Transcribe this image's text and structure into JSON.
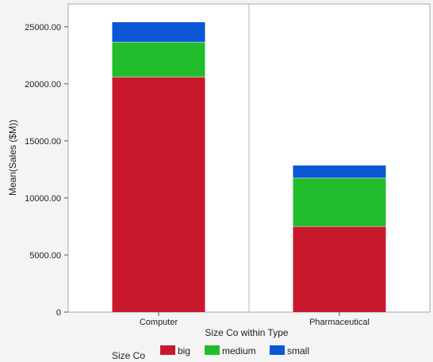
{
  "chart_data": {
    "type": "bar",
    "stacked": true,
    "xlabel": "Size Co within Type",
    "ylabel": "Mean(Sales ($M))",
    "categories": [
      "Computer",
      "Pharmaceutical"
    ],
    "series": [
      {
        "name": "big",
        "values": [
          20600,
          7500
        ],
        "color": "#c8192c"
      },
      {
        "name": "medium",
        "values": [
          3050,
          4250
        ],
        "color": "#21bd2c"
      },
      {
        "name": "small",
        "values": [
          1750,
          1100
        ],
        "color": "#0a56d4"
      }
    ],
    "ylim": [
      0,
      27000
    ],
    "yticks": [
      0,
      5000,
      10000,
      15000,
      20000,
      25000
    ],
    "ytick_labels": [
      "0",
      "5000.00",
      "10000.00",
      "15000.00",
      "20000.00",
      "25000.00"
    ],
    "grid": false,
    "legend": {
      "title": "Size Co",
      "position": "bottom-left"
    }
  }
}
